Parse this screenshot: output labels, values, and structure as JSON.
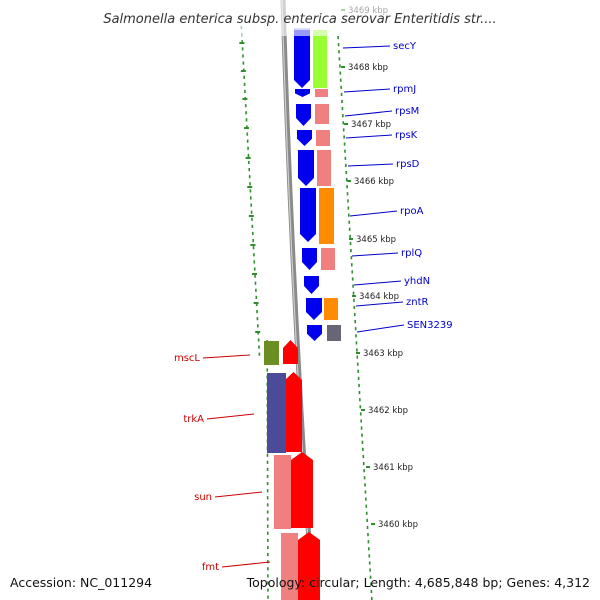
{
  "title": "Salmonella enterica subsp. enterica serovar Enteritidis str....",
  "accession": "Accession: NC_011294",
  "topology": "Topology: circular; Length: 4,685,848 bp; Genes: 4,312",
  "colors": {
    "backbone": "#8a8a8a",
    "tick": "#2f8f2f",
    "label_forward": "#0000cc",
    "label_reverse": "#cc0000"
  },
  "kbp_ticks": [
    "3469 kbp",
    "3468 kbp",
    "3467 kbp",
    "3466 kbp",
    "3465 kbp",
    "3464 kbp",
    "3463 kbp",
    "3462 kbp",
    "3461 kbp",
    "3460 kbp"
  ],
  "forward_genes": [
    {
      "name": "secY",
      "color": "#0000ee",
      "paired_color": "#99ff33"
    },
    {
      "name": "rpmJ",
      "color": "#0000ee",
      "paired_color": "#f08080"
    },
    {
      "name": "rpsM",
      "color": "#0000ee",
      "paired_color": "#f08080"
    },
    {
      "name": "rpsK",
      "color": "#0000ee",
      "paired_color": "#f08080"
    },
    {
      "name": "rpsD",
      "color": "#0000ee",
      "paired_color": "#f08080"
    },
    {
      "name": "rpoA",
      "color": "#0000ee",
      "paired_color": "#ff8c00"
    },
    {
      "name": "rplQ",
      "color": "#0000ee",
      "paired_color": "#f08080"
    },
    {
      "name": "yhdN",
      "color": "#0000ee",
      "paired_color": "#ffffff"
    },
    {
      "name": "zntR",
      "color": "#0000ee",
      "paired_color": "#ff8c00"
    },
    {
      "name": "SEN3239",
      "color": "#0000ee",
      "paired_color": "#666677"
    }
  ],
  "reverse_genes": [
    {
      "name": "mscL",
      "color": "#ff0000",
      "paired_color": "#6b8e23"
    },
    {
      "name": "trkA",
      "color": "#ff0000",
      "paired_color": "#4b4b99"
    },
    {
      "name": "sun",
      "color": "#ff0000",
      "paired_color": "#f08080"
    },
    {
      "name": "fmt",
      "color": "#ff0000",
      "paired_color": "#f08080"
    }
  ]
}
